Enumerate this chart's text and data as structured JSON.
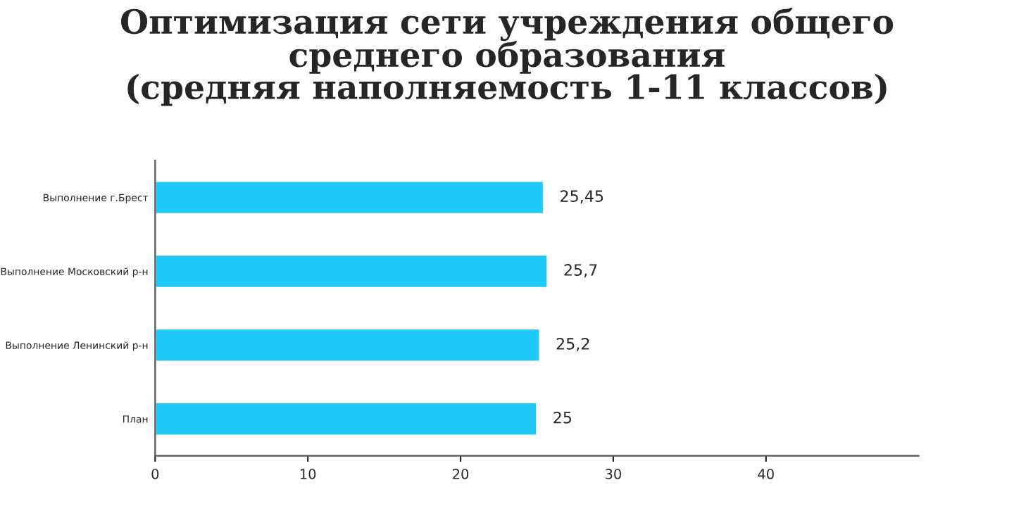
{
  "chart_data": {
    "type": "bar",
    "orientation": "horizontal",
    "title": "Оптимизация сети учреждения общего\nсреднего образования\n(средняя наполняемость 1-11 классов)",
    "categories": [
      "Выполнение г.Брест",
      "Выполнение Московский р-н",
      "Выполнение Ленинский р-н",
      "План"
    ],
    "values": [
      25.45,
      25.7,
      25.2,
      25
    ],
    "value_labels": [
      "25,45",
      "25,7",
      "25,2",
      "25"
    ],
    "color": "#1ec8f7",
    "xlim": [
      0,
      50
    ],
    "xticks": [
      0,
      10,
      20,
      30,
      40
    ],
    "grid": false,
    "legend": false
  }
}
